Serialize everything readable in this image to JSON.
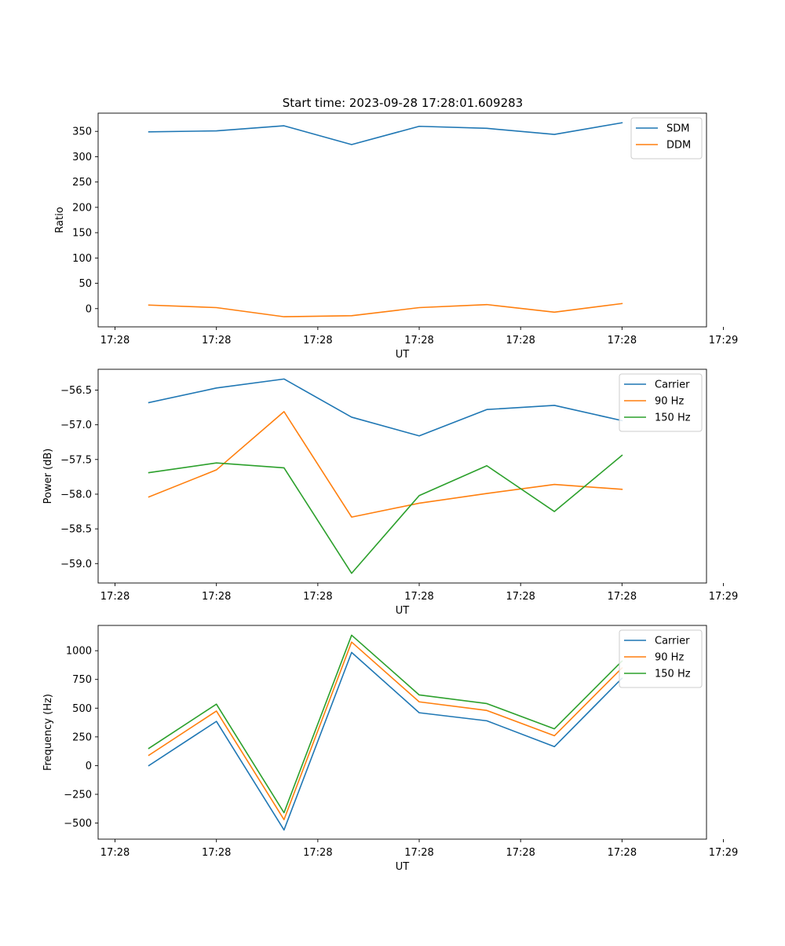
{
  "figure_title": "Start time: 2023-09-28 17:28:01.609283",
  "chart_data": [
    {
      "type": "line",
      "xlabel": "UT",
      "ylabel": "Ratio",
      "x_index_range": [
        -0.75,
        8.25
      ],
      "x_ticks": [
        {
          "pos": -0.5,
          "label": "17:28"
        },
        {
          "pos": 1,
          "label": "17:28"
        },
        {
          "pos": 2.5,
          "label": "17:28"
        },
        {
          "pos": 4,
          "label": "17:28"
        },
        {
          "pos": 5.5,
          "label": "17:28"
        },
        {
          "pos": 7,
          "label": "17:28"
        },
        {
          "pos": 8.5,
          "label": "17:29"
        }
      ],
      "ylim": [
        -36,
        386
      ],
      "y_ticks": [
        0,
        50,
        100,
        150,
        200,
        250,
        300,
        350
      ],
      "legend_position": "upper-right",
      "series": [
        {
          "name": "SDM",
          "color": "#1f77b4",
          "values": [
            349,
            351,
            361,
            324,
            360,
            356,
            344,
            367
          ]
        },
        {
          "name": "DDM",
          "color": "#ff7f0e",
          "values": [
            7,
            2,
            -16,
            -14,
            2,
            8,
            -7,
            10
          ]
        }
      ]
    },
    {
      "type": "line",
      "xlabel": "UT",
      "ylabel": "Power (dB)",
      "x_index_range": [
        -0.75,
        8.25
      ],
      "x_ticks": [
        {
          "pos": -0.5,
          "label": "17:28"
        },
        {
          "pos": 1,
          "label": "17:28"
        },
        {
          "pos": 2.5,
          "label": "17:28"
        },
        {
          "pos": 4,
          "label": "17:28"
        },
        {
          "pos": 5.5,
          "label": "17:28"
        },
        {
          "pos": 7,
          "label": "17:28"
        },
        {
          "pos": 8.5,
          "label": "17:29"
        }
      ],
      "ylim": [
        -59.28,
        -56.2
      ],
      "y_ticks": [
        -59.0,
        -58.5,
        -58.0,
        -57.5,
        -57.0,
        -56.5
      ],
      "y_tick_labels": [
        "−59.0",
        "−58.5",
        "−58.0",
        "−57.5",
        "−57.0",
        "−56.5"
      ],
      "legend_position": "upper-right",
      "series": [
        {
          "name": "Carrier",
          "color": "#1f77b4",
          "values": [
            -56.68,
            -56.47,
            -56.34,
            -56.89,
            -57.16,
            -56.78,
            -56.72,
            -56.94
          ]
        },
        {
          "name": "90 Hz",
          "color": "#ff7f0e",
          "values": [
            -58.04,
            -57.65,
            -56.81,
            -58.33,
            -58.13,
            -57.99,
            -57.86,
            -57.93
          ]
        },
        {
          "name": "150 Hz",
          "color": "#2ca02c",
          "values": [
            -57.69,
            -57.55,
            -57.62,
            -59.14,
            -58.02,
            -57.59,
            -58.25,
            -57.44
          ]
        }
      ]
    },
    {
      "type": "line",
      "xlabel": "UT",
      "ylabel": "Frequency (Hz)",
      "x_index_range": [
        -0.75,
        8.25
      ],
      "x_ticks": [
        {
          "pos": -0.5,
          "label": "17:28"
        },
        {
          "pos": 1,
          "label": "17:28"
        },
        {
          "pos": 2.5,
          "label": "17:28"
        },
        {
          "pos": 4,
          "label": "17:28"
        },
        {
          "pos": 5.5,
          "label": "17:28"
        },
        {
          "pos": 7,
          "label": "17:28"
        },
        {
          "pos": 8.5,
          "label": "17:29"
        }
      ],
      "ylim": [
        -640,
        1220
      ],
      "y_ticks": [
        -500,
        -250,
        0,
        250,
        500,
        750,
        1000
      ],
      "y_tick_labels": [
        "−500",
        "−250",
        "0",
        "250",
        "500",
        "750",
        "1000"
      ],
      "legend_position": "upper-right",
      "series": [
        {
          "name": "Carrier",
          "color": "#1f77b4",
          "values": [
            0,
            385,
            -560,
            985,
            460,
            390,
            165,
            760
          ]
        },
        {
          "name": "90 Hz",
          "color": "#ff7f0e",
          "values": [
            90,
            475,
            -470,
            1075,
            555,
            480,
            260,
            850
          ]
        },
        {
          "name": "150 Hz",
          "color": "#2ca02c",
          "values": [
            150,
            535,
            -410,
            1135,
            615,
            540,
            320,
            910
          ]
        }
      ]
    }
  ]
}
